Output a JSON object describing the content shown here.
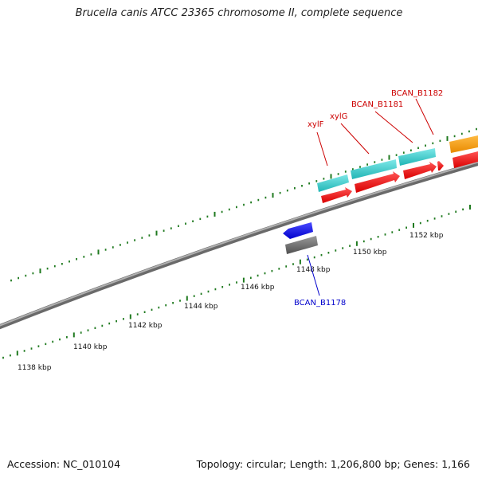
{
  "title": "Brucella canis ATCC 23365 chromosome II, complete sequence",
  "footer": {
    "accession": "Accession: NC_010104",
    "stats": "Topology: circular; Length: 1,206,800 bp; Genes: 1,166"
  },
  "scale_labels": [
    "1138 kbp",
    "1140 kbp",
    "1142 kbp",
    "1144 kbp",
    "1146 kbp",
    "1148 kbp",
    "1150 kbp",
    "1152 kbp"
  ],
  "gene_labels": [
    {
      "id": "xylF",
      "text": "xylF",
      "color": "#cc0000"
    },
    {
      "id": "xylG",
      "text": "xylG",
      "color": "#cc0000"
    },
    {
      "id": "BCAN_B1181",
      "text": "BCAN_B1181",
      "color": "#cc0000"
    },
    {
      "id": "BCAN_B1182",
      "text": "BCAN_B1182",
      "color": "#cc0000"
    },
    {
      "id": "BCAN_B1178",
      "text": "BCAN_B1178",
      "color": "#0000cc"
    }
  ],
  "colors": {
    "backbone": "#8c8c8c",
    "tick": "#1f7a1f",
    "cds_forward": "#ff0000",
    "gene_forward": "#33cccc",
    "cds_reverse": "#0000ff",
    "gene_reverse": "#666666",
    "other_feature": "#ff9900"
  }
}
